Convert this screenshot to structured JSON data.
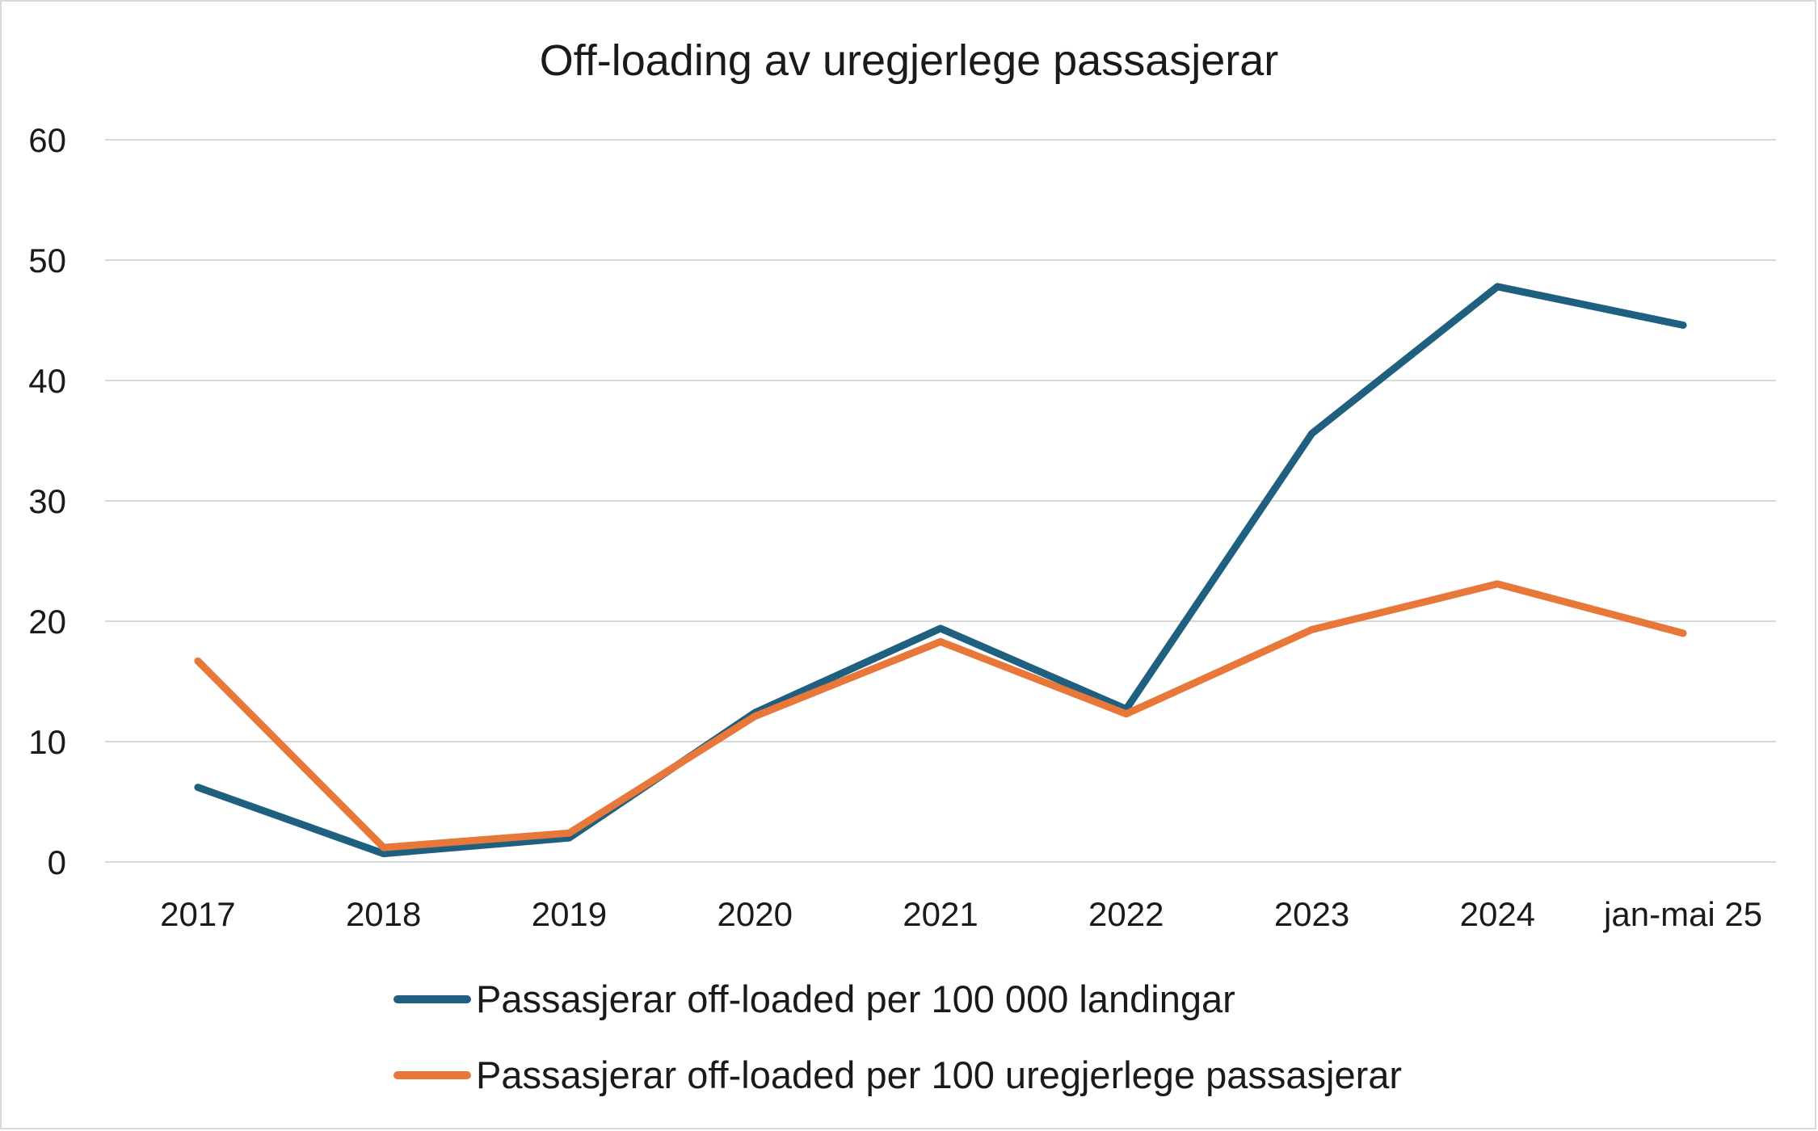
{
  "chart_data": {
    "type": "line",
    "title": "Off-loading av uregjerlege passasjerar",
    "xlabel": "",
    "ylabel": "",
    "categories": [
      "2017",
      "2018",
      "2019",
      "2020",
      "2021",
      "2022",
      "2023",
      "2024",
      "jan-mai 25"
    ],
    "ylim": [
      0,
      60
    ],
    "yticks": [
      0,
      10,
      20,
      30,
      40,
      50,
      60
    ],
    "grid": true,
    "legend_position": "bottom",
    "series": [
      {
        "name": "Passasjerar off-loaded per 100 000 landingar",
        "color": "#1f5f7f",
        "values": [
          6.2,
          0.7,
          2.0,
          12.4,
          19.4,
          12.7,
          35.6,
          47.8,
          44.6
        ]
      },
      {
        "name": "Passasjerar off-loaded per 100 uregjerlege passasjerar",
        "color": "#e8773a",
        "values": [
          16.7,
          1.2,
          2.4,
          12.1,
          18.3,
          12.3,
          19.3,
          23.1,
          19.0
        ]
      }
    ]
  }
}
